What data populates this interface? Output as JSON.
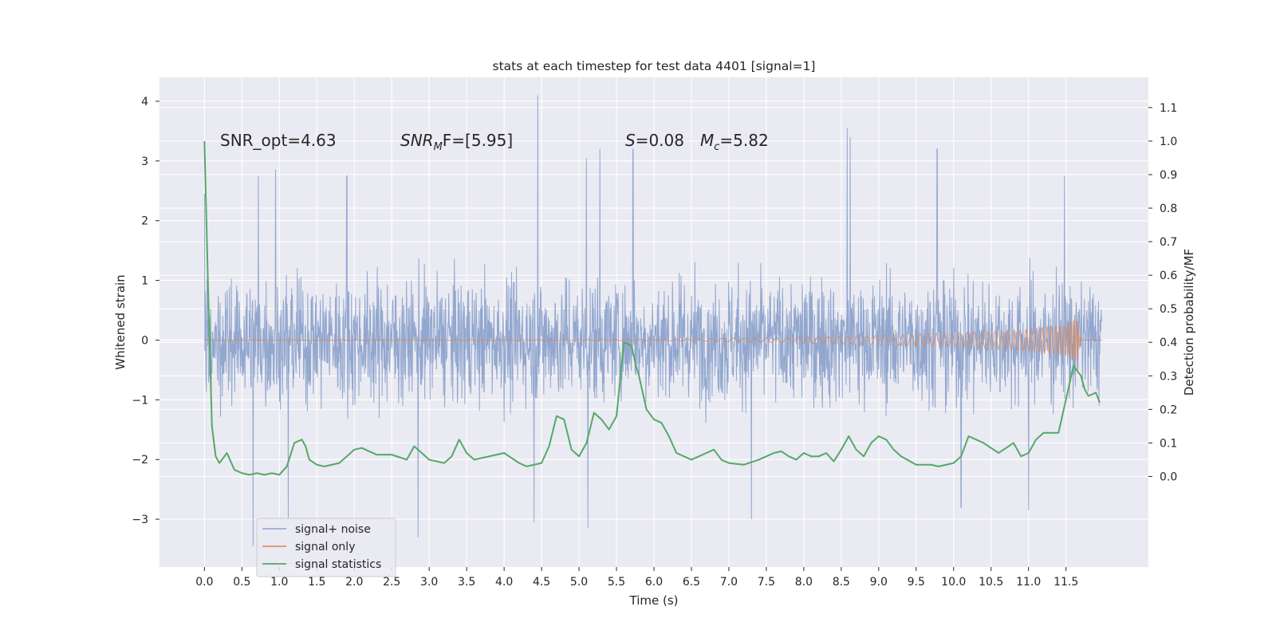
{
  "chart_data": {
    "type": "line",
    "title": "stats at each timestep for test data 4401 [signal=1]",
    "xlabel": "Time (s)",
    "ylabel": "Whitened strain",
    "y2label": "Detection probability/MF",
    "xlim": [
      -0.6,
      12.6
    ],
    "ylim": [
      -3.8,
      4.4
    ],
    "y2lim": [
      -0.27,
      1.19
    ],
    "x_ticks": [
      "0.0",
      "0.5",
      "1.0",
      "1.5",
      "2.0",
      "2.5",
      "3.0",
      "3.5",
      "4.0",
      "4.5",
      "5.0",
      "5.5",
      "6.0",
      "6.5",
      "7.0",
      "7.5",
      "8.0",
      "8.5",
      "9.0",
      "9.5",
      "10.0",
      "10.5",
      "11.0",
      "11.5"
    ],
    "y_ticks": [
      "4",
      "3",
      "2",
      "1",
      "0",
      "−1",
      "−2",
      "−3"
    ],
    "y2_ticks": [
      "1.1",
      "1.0",
      "0.9",
      "0.8",
      "0.7",
      "0.6",
      "0.5",
      "0.4",
      "0.3",
      "0.2",
      "0.1",
      "0.0"
    ],
    "grid": true,
    "legend_position": "lower-left",
    "legend": [
      "signal+ noise",
      "signal only",
      "signal statistics"
    ],
    "annotations": {
      "snr_opt": "SNR_opt=4.63",
      "snr_mf_main": "SNR",
      "snr_mf_sub": "M",
      "snr_mf_rest": "F=[5.95]",
      "s_label": "S",
      "s_value": "=0.08",
      "mc_main": "M",
      "mc_sub": "c",
      "mc_value": "=5.82"
    },
    "colors": {
      "noise": "#8da3cc",
      "signal": "#dd8452",
      "stats": "#55a868",
      "background": "#eaeaf2",
      "grid": "#ffffff"
    },
    "series": [
      {
        "name": "signal+ noise",
        "description_values": {
          "x_range": [
            0.0,
            11.98
          ],
          "typical_band": [
            -1.45,
            1.5
          ],
          "spike_peaks": [
            {
              "x": 0.0,
              "y": 2.45
            },
            {
              "x": 0.65,
              "y": -3.45
            },
            {
              "x": 0.72,
              "y": 2.75
            },
            {
              "x": 0.95,
              "y": 2.85
            },
            {
              "x": 1.12,
              "y": -3.0
            },
            {
              "x": 1.9,
              "y": 2.75
            },
            {
              "x": 2.85,
              "y": -3.3
            },
            {
              "x": 4.45,
              "y": 4.1
            },
            {
              "x": 4.4,
              "y": -3.05
            },
            {
              "x": 5.1,
              "y": 3.05
            },
            {
              "x": 5.12,
              "y": -3.15
            },
            {
              "x": 5.28,
              "y": 3.2
            },
            {
              "x": 5.72,
              "y": 3.2
            },
            {
              "x": 7.3,
              "y": -3.0
            },
            {
              "x": 8.58,
              "y": 3.55
            },
            {
              "x": 8.62,
              "y": 3.4
            },
            {
              "x": 9.78,
              "y": 3.2
            },
            {
              "x": 10.1,
              "y": -2.8
            },
            {
              "x": 11.0,
              "y": -2.85
            },
            {
              "x": 11.48,
              "y": 2.75
            }
          ]
        }
      },
      {
        "name": "signal only",
        "description_values": {
          "x_range": [
            0.0,
            11.98
          ],
          "envelope": [
            {
              "x": 0.0,
              "y": 0.0
            },
            {
              "x": 6.0,
              "y": 0.01
            },
            {
              "x": 7.0,
              "y": 0.03
            },
            {
              "x": 8.0,
              "y": 0.05
            },
            {
              "x": 9.0,
              "y": 0.08
            },
            {
              "x": 10.0,
              "y": 0.12
            },
            {
              "x": 11.0,
              "y": 0.18
            },
            {
              "x": 11.5,
              "y": 0.26
            },
            {
              "x": 11.65,
              "y": 0.38
            },
            {
              "x": 11.7,
              "y": 0.0
            }
          ]
        }
      },
      {
        "name": "signal statistics",
        "axis": "right",
        "x": [
          0.0,
          0.05,
          0.1,
          0.15,
          0.2,
          0.3,
          0.4,
          0.5,
          0.6,
          0.7,
          0.8,
          0.9,
          1.0,
          1.1,
          1.2,
          1.3,
          1.35,
          1.4,
          1.5,
          1.6,
          1.7,
          1.8,
          1.9,
          2.0,
          2.1,
          2.2,
          2.3,
          2.5,
          2.7,
          2.8,
          3.0,
          3.2,
          3.3,
          3.4,
          3.5,
          3.6,
          3.8,
          4.0,
          4.2,
          4.3,
          4.5,
          4.6,
          4.7,
          4.8,
          4.9,
          5.0,
          5.1,
          5.2,
          5.3,
          5.4,
          5.5,
          5.6,
          5.7,
          5.75,
          5.8,
          5.9,
          6.0,
          6.1,
          6.2,
          6.3,
          6.4,
          6.5,
          6.7,
          6.8,
          6.9,
          7.0,
          7.2,
          7.4,
          7.6,
          7.7,
          7.8,
          7.9,
          8.0,
          8.1,
          8.2,
          8.3,
          8.4,
          8.5,
          8.6,
          8.7,
          8.8,
          8.9,
          9.0,
          9.1,
          9.2,
          9.3,
          9.5,
          9.7,
          9.8,
          10.0,
          10.1,
          10.2,
          10.3,
          10.4,
          10.6,
          10.8,
          10.9,
          11.0,
          11.1,
          11.2,
          11.3,
          11.4,
          11.5,
          11.6,
          11.7,
          11.75,
          11.8,
          11.9,
          11.95
        ],
        "values": [
          1.0,
          0.55,
          0.15,
          0.06,
          0.04,
          0.07,
          0.02,
          0.01,
          0.005,
          0.01,
          0.005,
          0.01,
          0.005,
          0.03,
          0.1,
          0.11,
          0.09,
          0.05,
          0.035,
          0.03,
          0.035,
          0.04,
          0.06,
          0.08,
          0.085,
          0.075,
          0.065,
          0.065,
          0.05,
          0.09,
          0.05,
          0.04,
          0.06,
          0.11,
          0.07,
          0.05,
          0.06,
          0.07,
          0.04,
          0.03,
          0.04,
          0.09,
          0.18,
          0.17,
          0.08,
          0.06,
          0.1,
          0.19,
          0.17,
          0.14,
          0.18,
          0.4,
          0.39,
          0.34,
          0.3,
          0.2,
          0.17,
          0.16,
          0.12,
          0.07,
          0.06,
          0.05,
          0.07,
          0.08,
          0.05,
          0.04,
          0.035,
          0.05,
          0.07,
          0.075,
          0.06,
          0.05,
          0.07,
          0.06,
          0.06,
          0.07,
          0.045,
          0.08,
          0.12,
          0.08,
          0.06,
          0.1,
          0.12,
          0.11,
          0.08,
          0.06,
          0.035,
          0.035,
          0.03,
          0.04,
          0.06,
          0.12,
          0.11,
          0.1,
          0.07,
          0.1,
          0.06,
          0.07,
          0.11,
          0.13,
          0.13,
          0.13,
          0.23,
          0.33,
          0.3,
          0.26,
          0.24,
          0.25,
          0.22
        ]
      }
    ]
  }
}
